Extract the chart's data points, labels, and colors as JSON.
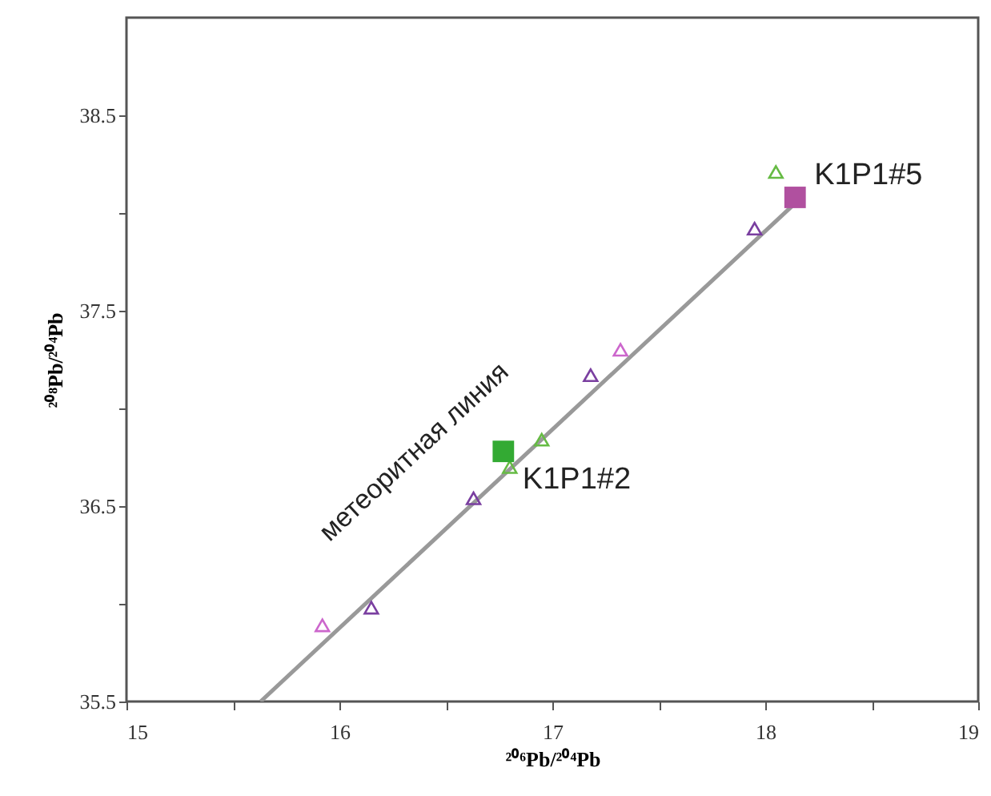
{
  "chart_data": {
    "type": "scatter",
    "xlabel": "²⁰⁶Pb/²⁰⁴Pb",
    "ylabel": "²⁰⁸Pb/²⁰⁴Pb",
    "xlim": [
      15,
      19
    ],
    "ylim": [
      35.5,
      39
    ],
    "xticks": [
      15,
      {
        "value": 15.5,
        "label": null
      },
      16,
      {
        "value": 16.5,
        "label": null
      },
      17,
      {
        "value": 17.5,
        "label": null
      },
      18,
      {
        "value": 18.5,
        "label": null
      },
      19
    ],
    "yticks": [
      35.5,
      {
        "value": 36,
        "label": null
      },
      36.5,
      {
        "value": 37,
        "label": null
      },
      37.5,
      {
        "value": 38,
        "label": null
      },
      38.5
    ],
    "grid": false,
    "series": [
      {
        "type": "line",
        "color": "#999999",
        "line_style": "solid",
        "x": [
          15.63,
          18.14
        ],
        "values": [
          35.5,
          38.05
        ]
      },
      {
        "color": "#cc66cc",
        "marker": "triangle",
        "x": [
          15.92,
          17.32
        ],
        "values": [
          35.89,
          37.3
        ]
      },
      {
        "color": "#7a3fa0",
        "marker": "triangle",
        "x": [
          16.15,
          16.63,
          17.18,
          17.95
        ],
        "values": [
          35.98,
          36.54,
          37.17,
          37.92
        ]
      },
      {
        "color": "#66bb44",
        "marker": "triangle",
        "x": [
          16.8,
          16.95,
          18.05
        ],
        "values": [
          36.7,
          36.84,
          38.21
        ]
      },
      {
        "color": "#33aa33",
        "marker": "square",
        "x": [
          16.77
        ],
        "values": [
          36.78
        ]
      },
      {
        "color": "#b0509f",
        "marker": "square",
        "x": [
          18.14
        ],
        "values": [
          38.08
        ]
      }
    ],
    "annotations": [
      "метеоритная линия",
      {
        "text": "K1P1#2",
        "x": 16.77,
        "y": 36.78
      },
      {
        "text": "K1P1#5",
        "x": 18.14,
        "y": 38.08
      }
    ]
  }
}
